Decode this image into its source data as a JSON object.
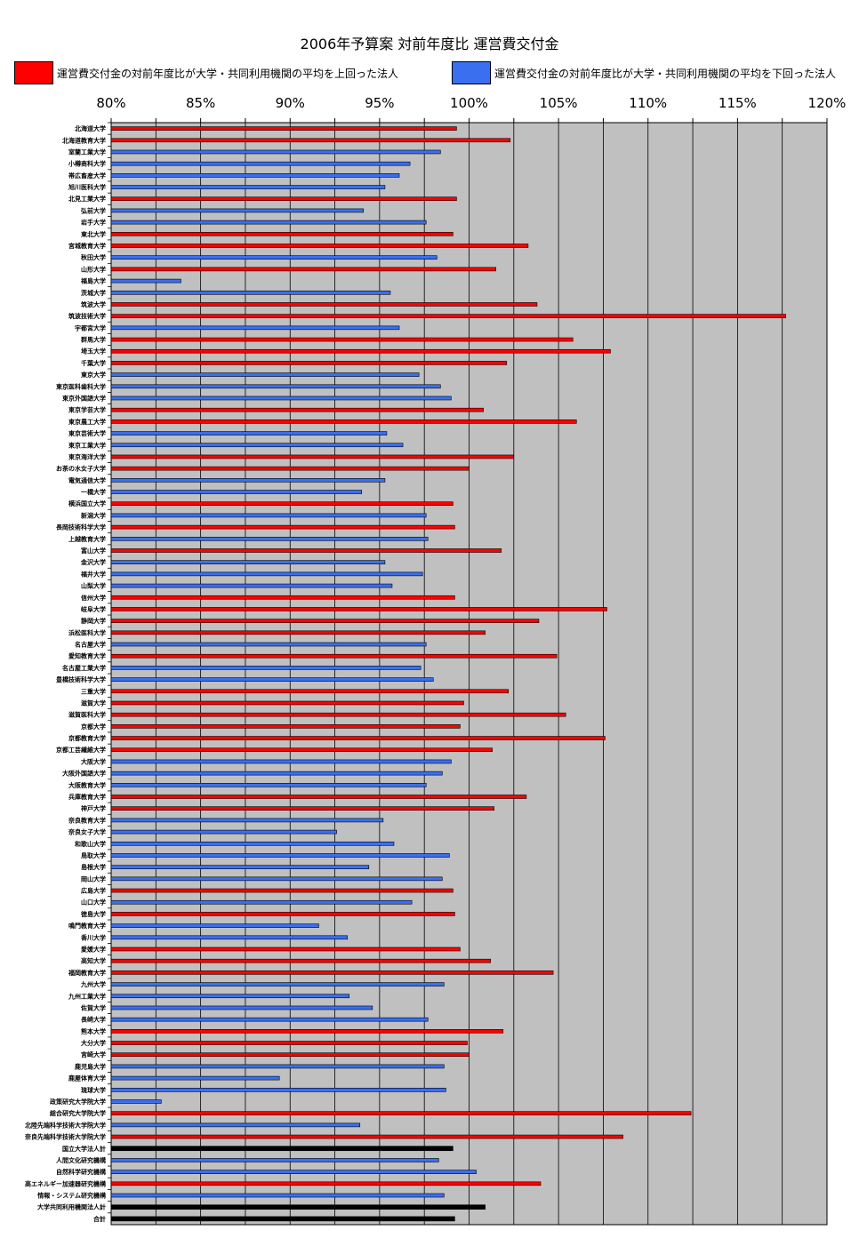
{
  "chart_data": {
    "type": "bar",
    "orientation": "horizontal",
    "title": "2006年予算案  対前年度比  運営費交付金",
    "xlim": [
      80,
      120
    ],
    "x_ticks": [
      "80%",
      "85%",
      "90%",
      "95%",
      "100%",
      "105%",
      "110%",
      "115%",
      "120%"
    ],
    "grid": true,
    "legend_position": "top",
    "legend": [
      {
        "label": "運営費交付金の対前年度比が大学・共同利用機関の平均を上回った法人",
        "color": "#ff0000"
      },
      {
        "label": "運営費交付金の対前年度比が大学・共同利用機関の平均を下回った法人",
        "color": "#3a6ff0"
      }
    ],
    "colors": {
      "above": "#ff0000",
      "below": "#3a6ff0",
      "total": "#000000",
      "plot_bg": "#c0c0c0"
    },
    "categories": [
      "北海道大学",
      "北海道教育大学",
      "室蘭工業大学",
      "小樽商科大学",
      "帯広畜産大学",
      "旭川医科大学",
      "北見工業大学",
      "弘前大学",
      "岩手大学",
      "東北大学",
      "宮城教育大学",
      "秋田大学",
      "山形大学",
      "福島大学",
      "茨城大学",
      "筑波大学",
      "筑波技術大学",
      "宇都宮大学",
      "群馬大学",
      "埼玉大学",
      "千葉大学",
      "東京大学",
      "東京医科歯科大学",
      "東京外国語大学",
      "東京学芸大学",
      "東京農工大学",
      "東京芸術大学",
      "東京工業大学",
      "東京海洋大学",
      "お茶の水女子大学",
      "電気通信大学",
      "一橋大学",
      "横浜国立大学",
      "新潟大学",
      "長岡技術科学大学",
      "上越教育大学",
      "富山大学",
      "金沢大学",
      "福井大学",
      "山梨大学",
      "信州大学",
      "岐阜大学",
      "静岡大学",
      "浜松医科大学",
      "名古屋大学",
      "愛知教育大学",
      "名古屋工業大学",
      "豊橋技術科学大学",
      "三重大学",
      "滋賀大学",
      "滋賀医科大学",
      "京都大学",
      "京都教育大学",
      "京都工芸繊維大学",
      "大阪大学",
      "大阪外国語大学",
      "大阪教育大学",
      "兵庫教育大学",
      "神戸大学",
      "奈良教育大学",
      "奈良女子大学",
      "和歌山大学",
      "鳥取大学",
      "島根大学",
      "岡山大学",
      "広島大学",
      "山口大学",
      "徳島大学",
      "鳴門教育大学",
      "香川大学",
      "愛媛大学",
      "高知大学",
      "福岡教育大学",
      "九州大学",
      "九州工業大学",
      "佐賀大学",
      "長崎大学",
      "熊本大学",
      "大分大学",
      "宮崎大学",
      "鹿児島大学",
      "鹿屋体育大学",
      "琉球大学",
      "政策研究大学院大学",
      "総合研究大学院大学",
      "北陸先端科学技術大学院大学",
      "奈良先端科学技術大学院大学",
      "国立大学法人計",
      "人間文化研究機構",
      "自然科学研究機構",
      "高エネルギー加速器研究機構",
      "情報・システム研究機構",
      "大学共同利用機関法人計",
      "合計"
    ],
    "values": [
      99.3,
      102.3,
      98.4,
      96.7,
      96.1,
      95.3,
      99.3,
      94.1,
      97.6,
      99.1,
      103.3,
      98.2,
      101.5,
      83.9,
      95.6,
      103.8,
      117.7,
      96.1,
      105.8,
      107.9,
      102.1,
      97.2,
      98.4,
      99.0,
      100.8,
      106.0,
      95.4,
      96.3,
      102.5,
      100.0,
      95.3,
      94.0,
      99.1,
      97.6,
      99.2,
      97.7,
      101.8,
      95.3,
      97.4,
      95.7,
      99.2,
      107.7,
      103.9,
      100.9,
      97.6,
      104.9,
      97.3,
      98.0,
      102.2,
      99.7,
      105.4,
      99.5,
      107.6,
      101.3,
      99.0,
      98.5,
      97.6,
      103.2,
      101.4,
      95.2,
      92.6,
      95.8,
      98.9,
      94.4,
      98.5,
      99.1,
      96.8,
      99.2,
      91.6,
      93.2,
      99.5,
      101.2,
      104.7,
      98.6,
      93.3,
      94.6,
      97.7,
      101.9,
      99.9,
      100.0,
      98.6,
      89.4,
      98.7,
      82.8,
      112.4,
      93.9,
      108.6,
      99.1,
      98.3,
      100.4,
      104.0,
      98.6,
      100.9,
      99.2
    ],
    "groups": [
      "above",
      "above",
      "below",
      "below",
      "below",
      "below",
      "above",
      "below",
      "below",
      "above",
      "above",
      "below",
      "above",
      "below",
      "below",
      "above",
      "above",
      "below",
      "above",
      "above",
      "above",
      "below",
      "below",
      "below",
      "above",
      "above",
      "below",
      "below",
      "above",
      "above",
      "below",
      "below",
      "above",
      "below",
      "above",
      "below",
      "above",
      "below",
      "below",
      "below",
      "above",
      "above",
      "above",
      "above",
      "below",
      "above",
      "below",
      "below",
      "above",
      "above",
      "above",
      "above",
      "above",
      "above",
      "below",
      "below",
      "below",
      "above",
      "above",
      "below",
      "below",
      "below",
      "below",
      "below",
      "below",
      "above",
      "below",
      "above",
      "below",
      "below",
      "above",
      "above",
      "above",
      "below",
      "below",
      "below",
      "below",
      "above",
      "above",
      "above",
      "below",
      "below",
      "below",
      "below",
      "above",
      "below",
      "above",
      "total",
      "below",
      "below",
      "above",
      "below",
      "total",
      "total"
    ]
  }
}
